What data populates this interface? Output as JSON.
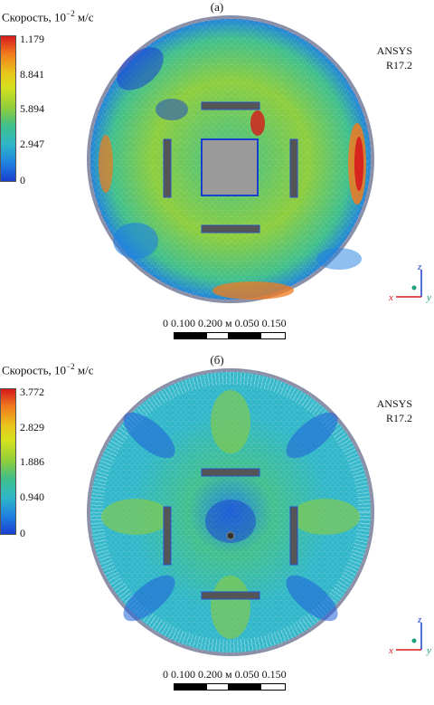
{
  "panels": [
    {
      "label": "(а)",
      "legend": {
        "title_main": "Скорость, 10",
        "title_exp": "−2",
        "title_unit": " м/с",
        "ticks": [
          "1.179",
          "8.841",
          "5.894",
          "2.947",
          "0"
        ]
      },
      "software": [
        "ANSYS",
        "R17.2"
      ],
      "scale": {
        "top": [
          "0",
          "0.100",
          "0.200 м"
        ],
        "bottom": [
          "0.050",
          "0.150"
        ]
      },
      "axes": {
        "z": "z",
        "x": "x",
        "y": "y"
      }
    },
    {
      "label": "(б)",
      "legend": {
        "title_main": "Скорость, 10",
        "title_exp": "−2",
        "title_unit": " м/с",
        "ticks": [
          "3.772",
          "2.829",
          "1.886",
          "0.940",
          "0"
        ]
      },
      "software": [
        "ANSYS",
        "R17.2"
      ],
      "scale": {
        "top": [
          "0",
          "0.100",
          "0.200 м"
        ],
        "bottom": [
          "0.050",
          "0.150"
        ]
      },
      "axes": {
        "z": "z",
        "x": "x",
        "y": "y"
      }
    }
  ],
  "colors": {
    "high": "#d7191c",
    "mid": "#8ccd3c",
    "low": "#1a3fd0"
  }
}
